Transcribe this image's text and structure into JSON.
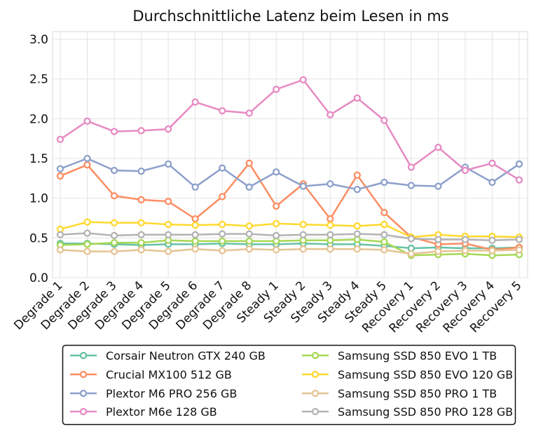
{
  "chart_data": {
    "type": "line",
    "title": "Durchschnittliche Latenz beim Lesen in ms",
    "xlabel": "",
    "ylabel": "",
    "ylim": [
      0.0,
      3.0
    ],
    "yticks": [
      "0.0",
      "0.5",
      "1.0",
      "1.5",
      "2.0",
      "2.5",
      "3.0"
    ],
    "grid": true,
    "legend_position": "bottom",
    "categories": [
      "Degrade 1",
      "Degrade 2",
      "Degrade 3",
      "Degrade 4",
      "Degrade 5",
      "Degrade 6",
      "Degrade 7",
      "Degrade 8",
      "Steady 1",
      "Steady 2",
      "Steady 3",
      "Steady 4",
      "Steady 5",
      "Recovery 1",
      "Recovery 2",
      "Recovery 3",
      "Recovery 4",
      "Recovery 5"
    ],
    "series": [
      {
        "name": "Corsair Neutron GTX 240 GB",
        "color": "#66c2a5",
        "values": [
          0.43,
          0.43,
          0.42,
          0.41,
          0.42,
          0.42,
          0.43,
          0.42,
          0.42,
          0.43,
          0.42,
          0.42,
          0.4,
          0.37,
          0.38,
          0.37,
          0.37,
          0.38
        ]
      },
      {
        "name": "Crucial MX100 512 GB",
        "color": "#fc8d62",
        "values": [
          1.28,
          1.42,
          1.03,
          0.98,
          0.96,
          0.74,
          1.02,
          1.44,
          0.9,
          1.18,
          0.74,
          1.29,
          0.82,
          0.51,
          0.42,
          0.43,
          0.35,
          0.38
        ]
      },
      {
        "name": "Plextor M6 PRO 256 GB",
        "color": "#8da0cb",
        "values": [
          1.37,
          1.5,
          1.35,
          1.34,
          1.43,
          1.14,
          1.38,
          1.14,
          1.33,
          1.15,
          1.18,
          1.11,
          1.2,
          1.16,
          1.15,
          1.39,
          1.2,
          1.43
        ]
      },
      {
        "name": "Plextor M6e 128 GB",
        "color": "#e78ac3",
        "values": [
          1.74,
          1.97,
          1.84,
          1.85,
          1.87,
          2.21,
          2.1,
          2.07,
          2.37,
          2.49,
          2.05,
          2.26,
          1.98,
          1.39,
          1.64,
          1.35,
          1.44,
          1.23
        ]
      },
      {
        "name": "Samsung SSD 850 EVO 1 TB",
        "color": "#a6d854",
        "values": [
          0.41,
          0.42,
          0.44,
          0.44,
          0.47,
          0.46,
          0.46,
          0.46,
          0.46,
          0.47,
          0.47,
          0.48,
          0.45,
          0.28,
          0.29,
          0.3,
          0.28,
          0.29
        ]
      },
      {
        "name": "Samsung SSD 850 EVO 120 GB",
        "color": "#ffd92f",
        "values": [
          0.61,
          0.7,
          0.69,
          0.69,
          0.67,
          0.66,
          0.67,
          0.65,
          0.68,
          0.67,
          0.66,
          0.65,
          0.67,
          0.51,
          0.54,
          0.52,
          0.52,
          0.51
        ]
      },
      {
        "name": "Samsung SSD 850 PRO 1 TB",
        "color": "#e5c494",
        "values": [
          0.35,
          0.33,
          0.33,
          0.35,
          0.33,
          0.36,
          0.34,
          0.36,
          0.35,
          0.36,
          0.36,
          0.36,
          0.35,
          0.3,
          0.33,
          0.34,
          0.34,
          0.35
        ]
      },
      {
        "name": "Samsung SSD 850 PRO 128 GB",
        "color": "#b3b3b3",
        "values": [
          0.54,
          0.56,
          0.53,
          0.54,
          0.54,
          0.54,
          0.55,
          0.55,
          0.53,
          0.54,
          0.54,
          0.55,
          0.54,
          0.49,
          0.48,
          0.48,
          0.47,
          0.48
        ]
      }
    ]
  }
}
